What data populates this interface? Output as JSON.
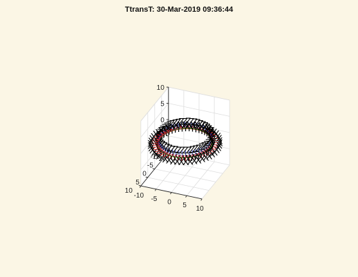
{
  "chart_data": {
    "type": "scatter3d",
    "title": "TtransT: 30-Mar-2019 09:36:44",
    "xlabel": "",
    "ylabel": "",
    "zlabel": "",
    "xlim": [
      -10,
      10
    ],
    "ylim": [
      -10,
      10
    ],
    "zlim": [
      -10,
      10
    ],
    "x_ticks": [
      "-10",
      "-5",
      "0",
      "5",
      "10"
    ],
    "y_ticks": [
      "-10",
      "-5",
      "0",
      "5",
      "10"
    ],
    "z_ticks": [
      "-5",
      "0",
      "5",
      "10"
    ],
    "grid": true,
    "ring": {
      "radius": 8,
      "num_frames": 50,
      "frame_axis_length": 2,
      "axis_letters": [
        "X",
        "Y",
        "Z"
      ],
      "axis_colors": [
        "#e02020",
        "#20a020",
        "#2030c0"
      ],
      "trajectory_color": "#e02020",
      "letter_color": "#000000"
    }
  }
}
